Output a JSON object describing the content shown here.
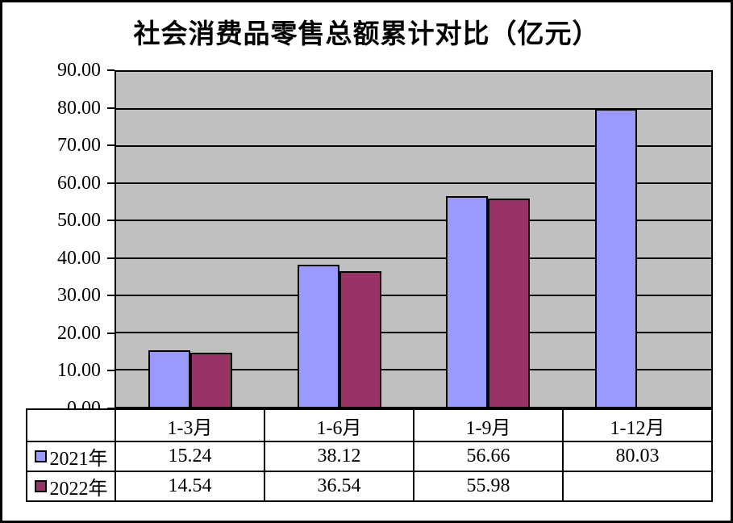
{
  "chart_data": {
    "type": "bar",
    "title": "社会消费品零售总额累计对比（亿元）",
    "categories": [
      "1-3月",
      "1-6月",
      "1-9月",
      "1-12月"
    ],
    "series": [
      {
        "name": "2021年",
        "color": "#9999FF",
        "values": [
          15.24,
          38.12,
          56.66,
          80.03
        ]
      },
      {
        "name": "2022年",
        "color": "#993366",
        "values": [
          14.54,
          36.54,
          55.98,
          null
        ]
      }
    ],
    "ylim": [
      0,
      90
    ],
    "y_ticks": [
      0,
      10,
      20,
      30,
      40,
      50,
      60,
      70,
      80,
      90
    ],
    "y_tick_labels": [
      "0.00",
      "10.00",
      "20.00",
      "30.00",
      "40.00",
      "50.00",
      "60.00",
      "70.00",
      "80.00",
      "90.00"
    ],
    "grid": "horizontal-major",
    "legend_position": "data-table-left",
    "plot_bg": "#C0C0C0",
    "frame_border": "#000000",
    "data_table_shown": true
  }
}
